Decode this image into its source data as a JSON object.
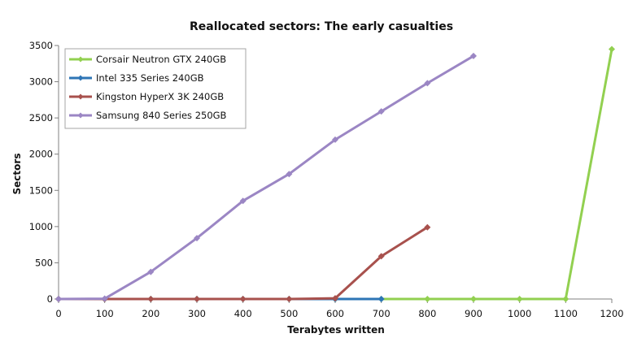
{
  "chart_data": {
    "type": "line",
    "title": "Reallocated  sectors:  The  early  casualties",
    "xlabel": "Terabytes written",
    "ylabel": "Sectors",
    "xlim": [
      0,
      1200
    ],
    "ylim": [
      0,
      3500
    ],
    "x_ticks": [
      0,
      100,
      200,
      300,
      400,
      500,
      600,
      700,
      800,
      900,
      1000,
      1100,
      1200
    ],
    "y_ticks": [
      0,
      500,
      1000,
      1500,
      2000,
      2500,
      3000,
      3500
    ],
    "grid": false,
    "legend_position": "top-left",
    "series": [
      {
        "name": "Corsair  Neutron  GTX  240GB",
        "color": "#92d050",
        "x": [
          0,
          100,
          200,
          300,
          400,
          500,
          600,
          700,
          800,
          900,
          1000,
          1100,
          1200
        ],
        "values": [
          0,
          0,
          0,
          0,
          0,
          0,
          0,
          0,
          0,
          0,
          0,
          0,
          3450
        ]
      },
      {
        "name": "Intel  335  Series  240GB",
        "color": "#2e75b6",
        "x": [
          0,
          100,
          200,
          300,
          400,
          500,
          600,
          700
        ],
        "values": [
          0,
          0,
          0,
          0,
          0,
          0,
          0,
          0
        ]
      },
      {
        "name": "Kingston  HyperX  3K  240GB",
        "color": "#a8514d",
        "x": [
          0,
          100,
          200,
          300,
          400,
          500,
          600,
          700,
          800
        ],
        "values": [
          0,
          0,
          0,
          0,
          0,
          0,
          10,
          590,
          990
        ]
      },
      {
        "name": "Samsung  840  Series  250GB",
        "color": "#9b86c4",
        "x": [
          0,
          100,
          200,
          300,
          400,
          500,
          600,
          700,
          800,
          900
        ],
        "values": [
          0,
          5,
          375,
          840,
          1355,
          1725,
          2200,
          2590,
          2980,
          3355
        ]
      }
    ]
  }
}
